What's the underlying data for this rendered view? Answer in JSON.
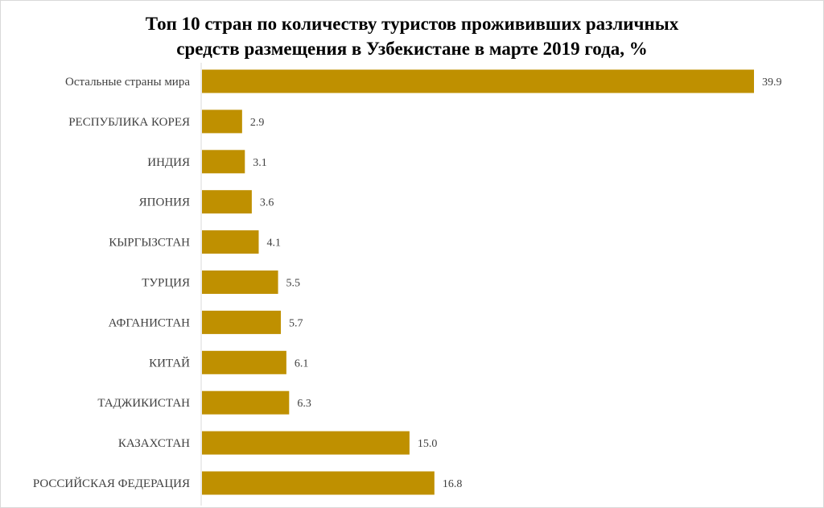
{
  "chart_data": {
    "type": "bar",
    "orientation": "horizontal",
    "title_lines": [
      "Топ 10 стран по количеству туристов прожививших различных",
      "средств размещения в Узбекистане в марте 2019 года, %"
    ],
    "categories": [
      "Остальные страны мира",
      "РЕСПУБЛИКА КОРЕЯ",
      "ИНДИЯ",
      "ЯПОНИЯ",
      "КЫРГЫЗСТАН",
      "ТУРЦИЯ",
      "АФГАНИСТАН",
      "КИТАЙ",
      "ТАДЖИКИСТАН",
      "КАЗАХСТАН",
      "РОССИЙСКАЯ ФЕДЕРАЦИЯ"
    ],
    "values": [
      39.9,
      2.9,
      3.1,
      3.6,
      4.1,
      5.5,
      5.7,
      6.1,
      6.3,
      15.0,
      16.8
    ],
    "value_labels": [
      "39.9",
      "2.9",
      "3.1",
      "3.6",
      "4.1",
      "5.5",
      "5.7",
      "6.1",
      "6.3",
      "15.0",
      "16.8"
    ],
    "xlim": [
      0,
      39.9
    ],
    "grid": false,
    "legend": "none",
    "bar_color": "#bf9000",
    "axis_color": "#d9d9d9"
  }
}
